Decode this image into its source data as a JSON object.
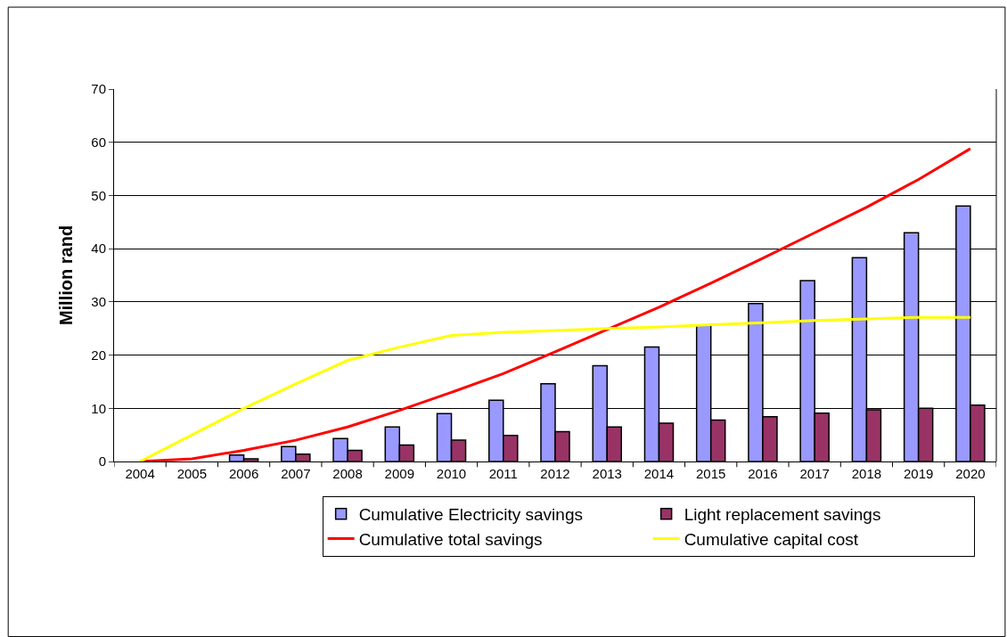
{
  "chart_data": {
    "type": "bar",
    "ylabel": "Million rand",
    "categories": [
      "2004",
      "2005",
      "2006",
      "2007",
      "2008",
      "2009",
      "2010",
      "2011",
      "2012",
      "2013",
      "2014",
      "2015",
      "2016",
      "2017",
      "2018",
      "2019",
      "2020"
    ],
    "series": [
      {
        "name": "Cumulative Electricity savings",
        "color": "#9999ff",
        "values": [
          null,
          null,
          1.2,
          2.8,
          4.3,
          6.5,
          9,
          11.5,
          14.6,
          18,
          21.5,
          25.6,
          29.7,
          34,
          38.3,
          43,
          48
        ]
      },
      {
        "name": "Light replacement savings",
        "color": "#993366",
        "values": [
          null,
          null,
          0.5,
          1.4,
          2.1,
          3.1,
          4,
          4.9,
          5.6,
          6.5,
          7.2,
          7.8,
          8.4,
          9.1,
          9.7,
          10,
          10.6
        ]
      },
      {
        "name": "Cumulative total savings",
        "type": "line",
        "color": "#ff0000",
        "values": [
          0,
          0.5,
          2.1,
          4,
          6.5,
          9.6,
          13,
          16.5,
          20.6,
          24.8,
          29,
          33.5,
          38.2,
          43,
          47.8,
          53,
          58.8
        ]
      },
      {
        "name": "Cumulative capital cost",
        "type": "line",
        "color": "#ffff00",
        "values": [
          0,
          5,
          10,
          14.6,
          19,
          21.5,
          23.7,
          24.3,
          24.6,
          25,
          25.3,
          25.7,
          26.1,
          26.5,
          26.8,
          27.1,
          27.1
        ]
      }
    ],
    "ylim": [
      0,
      70
    ],
    "yticks": [
      0,
      10,
      20,
      30,
      40,
      50,
      60,
      70
    ],
    "grid": "y",
    "legend": "bottom",
    "marker": "none",
    "line_style": "solid"
  }
}
